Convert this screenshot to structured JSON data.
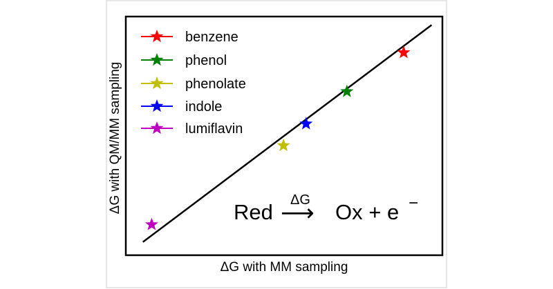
{
  "chart_data": {
    "type": "scatter",
    "xlabel": "ΔG with MM sampling",
    "ylabel": "ΔG with QM/MM sampling",
    "xlim": [
      0,
      100
    ],
    "ylim": [
      0,
      100
    ],
    "grid": false,
    "legend_position": "top-left",
    "ticks_shown": false,
    "diagonal_line": {
      "from": [
        5,
        5
      ],
      "to": [
        97,
        97
      ]
    },
    "series": [
      {
        "name": "benzene",
        "color": "#ff0000",
        "marker": "star",
        "x": 88.1,
        "y": 85.3
      },
      {
        "name": "phenol",
        "color": "#008000",
        "marker": "star",
        "x": 70.0,
        "y": 68.8
      },
      {
        "name": "phenolate",
        "color": "#bfbf00",
        "marker": "star",
        "x": 49.8,
        "y": 45.9
      },
      {
        "name": "indole",
        "color": "#0000ff",
        "marker": "star",
        "x": 57.0,
        "y": 55.1
      },
      {
        "name": "lumiflavin",
        "color": "#bf00bf",
        "marker": "star",
        "x": 7.8,
        "y": 12.4
      }
    ],
    "annotation": {
      "left": "Red",
      "over_arrow": "ΔG",
      "arrow": "⟶",
      "right": "Ox + e",
      "superscript": "−"
    }
  }
}
